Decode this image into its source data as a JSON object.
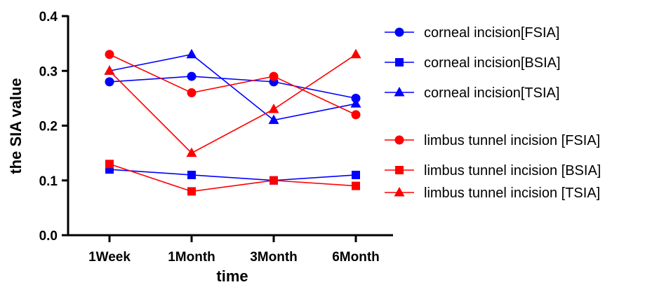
{
  "chart_data": {
    "type": "line",
    "xlabel": "time",
    "ylabel": "the SIA  value",
    "categories": [
      "1Week",
      "1Month",
      "3Month",
      "6Month"
    ],
    "ylim": [
      0,
      0.4
    ],
    "yticks": [
      "0.0",
      "0.1",
      "0.2",
      "0.3",
      "0.4"
    ],
    "grid": false,
    "legend_position": "right",
    "series": [
      {
        "name": "corneal incision[FSIA]",
        "values": [
          0.28,
          0.29,
          0.28,
          0.25
        ],
        "color": "#0000ff",
        "marker": "circle"
      },
      {
        "name": "corneal incision[BSIA]",
        "values": [
          0.12,
          0.11,
          0.1,
          0.11
        ],
        "color": "#0000ff",
        "marker": "square"
      },
      {
        "name": "corneal incision[TSIA]",
        "values": [
          0.3,
          0.33,
          0.21,
          0.24
        ],
        "color": "#0000ff",
        "marker": "triangle"
      },
      {
        "name": "limbus tunnel incision [FSIA]",
        "values": [
          0.33,
          0.26,
          0.29,
          0.22
        ],
        "color": "#ff0000",
        "marker": "circle"
      },
      {
        "name": "limbus tunnel incision [BSIA]",
        "values": [
          0.13,
          0.08,
          0.1,
          0.09
        ],
        "color": "#ff0000",
        "marker": "square"
      },
      {
        "name": "limbus tunnel incision [TSIA]",
        "values": [
          0.3,
          0.15,
          0.23,
          0.33
        ],
        "color": "#ff0000",
        "marker": "triangle"
      }
    ]
  }
}
